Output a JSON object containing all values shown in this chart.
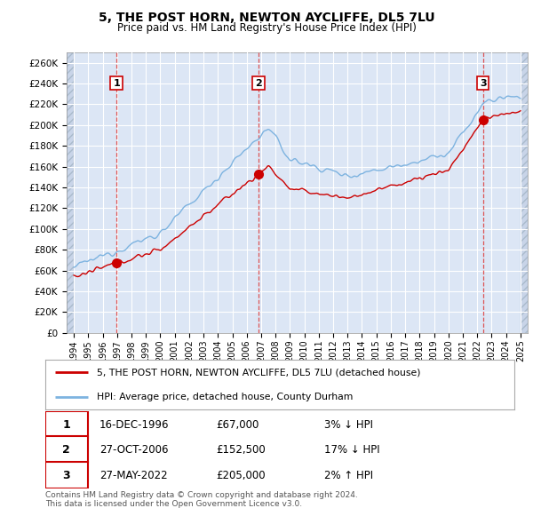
{
  "title": "5, THE POST HORN, NEWTON AYCLIFFE, DL5 7LU",
  "subtitle": "Price paid vs. HM Land Registry's House Price Index (HPI)",
  "ylabel_ticks": [
    "£0",
    "£20K",
    "£40K",
    "£60K",
    "£80K",
    "£100K",
    "£120K",
    "£140K",
    "£160K",
    "£180K",
    "£200K",
    "£220K",
    "£240K",
    "£260K"
  ],
  "ytick_values": [
    0,
    20000,
    40000,
    60000,
    80000,
    100000,
    120000,
    140000,
    160000,
    180000,
    200000,
    220000,
    240000,
    260000
  ],
  "ylim": [
    0,
    270000
  ],
  "sale_dates_decimal": [
    1996.96,
    2006.82,
    2022.41
  ],
  "sale_prices": [
    67000,
    152500,
    205000
  ],
  "sale_labels": [
    "1",
    "2",
    "3"
  ],
  "vline_dates": [
    1996.96,
    2006.82,
    2022.41
  ],
  "hpi_color": "#7db3e0",
  "sale_color": "#cc0000",
  "vline_color": "#dd4444",
  "background_color": "#ffffff",
  "plot_bg_color": "#dce6f5",
  "grid_color": "#ffffff",
  "hatch_color": "#c0c8d8",
  "legend1_text": "5, THE POST HORN, NEWTON AYCLIFFE, DL5 7LU (detached house)",
  "legend2_text": "HPI: Average price, detached house, County Durham",
  "table_rows": [
    [
      "1",
      "16-DEC-1996",
      "£67,000",
      "3% ↓ HPI"
    ],
    [
      "2",
      "27-OCT-2006",
      "£152,500",
      "17% ↓ HPI"
    ],
    [
      "3",
      "27-MAY-2022",
      "£205,000",
      "2% ↑ HPI"
    ]
  ],
  "footer_text": "Contains HM Land Registry data © Crown copyright and database right 2024.\nThis data is licensed under the Open Government Licence v3.0.",
  "xmin": 1993.5,
  "xmax": 2025.5,
  "data_xstart": 1994.0,
  "data_xend": 2025.0
}
